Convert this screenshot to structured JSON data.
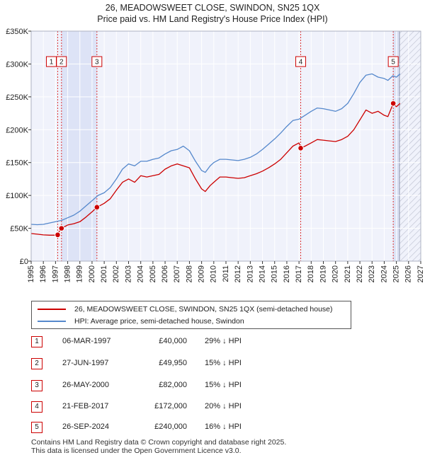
{
  "chart_data": {
    "type": "line",
    "title": "26, MEADOWSWEET CLOSE, SWINDON, SN25 1QX",
    "subtitle": "Price paid vs. HM Land Registry's House Price Index (HPI)",
    "xlim": [
      1995,
      2027
    ],
    "ylim": [
      0,
      350000
    ],
    "y_ticks": [
      0,
      50000,
      100000,
      150000,
      200000,
      250000,
      300000,
      350000
    ],
    "y_tick_labels": [
      "£0",
      "£50K",
      "£100K",
      "£150K",
      "£200K",
      "£250K",
      "£300K",
      "£350K"
    ],
    "x_ticks": [
      1995,
      1996,
      1997,
      1998,
      1999,
      2000,
      2001,
      2002,
      2003,
      2004,
      2005,
      2006,
      2007,
      2008,
      2009,
      2010,
      2011,
      2012,
      2013,
      2014,
      2015,
      2016,
      2017,
      2018,
      2019,
      2020,
      2021,
      2022,
      2023,
      2024,
      2025,
      2026,
      2027
    ],
    "x_tick_labels": [
      "1995",
      "1996",
      "1997",
      "1998",
      "1999",
      "2000",
      "2001",
      "2002",
      "2003",
      "2004",
      "2005",
      "2006",
      "2007",
      "2008",
      "2009",
      "2010",
      "2011",
      "2012",
      "2013",
      "2014",
      "2015",
      "2016",
      "2017",
      "2018",
      "2019",
      "2020",
      "2021",
      "2022",
      "2023",
      "2024",
      "2025",
      "2026",
      "2027"
    ],
    "shaded_ranges": [
      [
        1997.48,
        2000.4
      ],
      [
        2024.73,
        2025.25
      ]
    ],
    "hatched_range": [
      2025.25,
      2027
    ],
    "series": [
      {
        "name": "26, MEADOWSWEET CLOSE, SWINDON, SN25 1QX (semi-detached house)",
        "color": "#cc0000",
        "x": [
          1995.0,
          1995.5,
          1996.0,
          1996.5,
          1997.0,
          1997.18,
          1997.18,
          1997.3,
          1997.49,
          1997.49,
          1998.0,
          1998.5,
          1999.0,
          1999.5,
          2000.0,
          2000.4,
          2000.4,
          2001.0,
          2001.5,
          2002.0,
          2002.5,
          2003.0,
          2003.5,
          2004.0,
          2004.5,
          2005.0,
          2005.5,
          2006.0,
          2006.5,
          2007.0,
          2007.5,
          2008.0,
          2008.5,
          2009.0,
          2009.3,
          2009.7,
          2010.0,
          2010.5,
          2011.0,
          2011.5,
          2012.0,
          2012.5,
          2013.0,
          2013.5,
          2014.0,
          2014.5,
          2015.0,
          2015.5,
          2016.0,
          2016.5,
          2017.0,
          2017.14,
          2017.14,
          2017.5,
          2018.0,
          2018.5,
          2019.0,
          2019.5,
          2020.0,
          2020.5,
          2021.0,
          2021.5,
          2022.0,
          2022.5,
          2023.0,
          2023.5,
          2024.0,
          2024.3,
          2024.74,
          2024.74,
          2025.0,
          2025.3
        ],
        "values": [
          42000,
          41000,
          40000,
          39500,
          39500,
          40000,
          40000,
          45000,
          49950,
          49950,
          55000,
          57000,
          60000,
          67000,
          75000,
          82000,
          82000,
          88000,
          95000,
          108000,
          120000,
          125000,
          120000,
          130000,
          128000,
          130000,
          132000,
          140000,
          145000,
          148000,
          145000,
          142000,
          125000,
          110000,
          106000,
          115000,
          120000,
          128000,
          128000,
          127000,
          126000,
          127000,
          130000,
          133000,
          137000,
          142000,
          148000,
          155000,
          165000,
          175000,
          180000,
          172000,
          172000,
          175000,
          180000,
          185000,
          184000,
          183000,
          182000,
          185000,
          190000,
          200000,
          215000,
          230000,
          225000,
          228000,
          222000,
          220000,
          240000,
          240000,
          235000,
          240000
        ]
      },
      {
        "name": "HPI: Average price, semi-detached house, Swindon",
        "color": "#5588cc",
        "x": [
          1995.0,
          1995.5,
          1996.0,
          1996.5,
          1997.0,
          1997.5,
          1998.0,
          1998.5,
          1999.0,
          1999.5,
          2000.0,
          2000.5,
          2001.0,
          2001.5,
          2002.0,
          2002.5,
          2003.0,
          2003.5,
          2004.0,
          2004.5,
          2005.0,
          2005.5,
          2006.0,
          2006.5,
          2007.0,
          2007.5,
          2008.0,
          2008.5,
          2009.0,
          2009.3,
          2009.7,
          2010.0,
          2010.5,
          2011.0,
          2011.5,
          2012.0,
          2012.5,
          2013.0,
          2013.5,
          2014.0,
          2014.5,
          2015.0,
          2015.5,
          2016.0,
          2016.5,
          2017.0,
          2017.5,
          2018.0,
          2018.5,
          2019.0,
          2019.5,
          2020.0,
          2020.5,
          2021.0,
          2021.5,
          2022.0,
          2022.5,
          2023.0,
          2023.5,
          2024.0,
          2024.3,
          2024.7,
          2025.0,
          2025.3
        ],
        "values": [
          56000,
          55500,
          56000,
          58000,
          60000,
          62000,
          66000,
          70000,
          76000,
          84000,
          92000,
          100000,
          104000,
          112000,
          125000,
          140000,
          148000,
          145000,
          152000,
          152000,
          155000,
          157000,
          163000,
          168000,
          170000,
          175000,
          168000,
          152000,
          138000,
          135000,
          145000,
          150000,
          155000,
          155000,
          154000,
          153000,
          155000,
          158000,
          163000,
          170000,
          178000,
          186000,
          195000,
          205000,
          214000,
          216000,
          222000,
          228000,
          233000,
          232000,
          230000,
          228000,
          232000,
          240000,
          255000,
          272000,
          283000,
          285000,
          280000,
          278000,
          275000,
          282000,
          280000,
          285000
        ]
      }
    ],
    "sales": [
      {
        "label": "1",
        "x": 1997.18,
        "y": 40000
      },
      {
        "label": "2",
        "x": 1997.49,
        "y": 49950
      },
      {
        "label": "3",
        "x": 2000.4,
        "y": 82000
      },
      {
        "label": "4",
        "x": 2017.14,
        "y": 172000
      },
      {
        "label": "5",
        "x": 2024.74,
        "y": 240000
      }
    ]
  },
  "legend": {
    "property_label": "26, MEADOWSWEET CLOSE, SWINDON, SN25 1QX (semi-detached house)",
    "hpi_label": "HPI: Average price, semi-detached house, Swindon",
    "property_color": "#cc0000",
    "hpi_color": "#5588cc"
  },
  "transactions": [
    {
      "num": "1",
      "date": "06-MAR-1997",
      "price": "£40,000",
      "hpi": "29% ↓ HPI"
    },
    {
      "num": "2",
      "date": "27-JUN-1997",
      "price": "£49,950",
      "hpi": "15% ↓ HPI"
    },
    {
      "num": "3",
      "date": "26-MAY-2000",
      "price": "£82,000",
      "hpi": "15% ↓ HPI"
    },
    {
      "num": "4",
      "date": "21-FEB-2017",
      "price": "£172,000",
      "hpi": "20% ↓ HPI"
    },
    {
      "num": "5",
      "date": "26-SEP-2024",
      "price": "£240,000",
      "hpi": "16% ↓ HPI"
    }
  ],
  "footer": {
    "line1": "Contains HM Land Registry data © Crown copyright and database right 2025.",
    "line2": "This data is licensed under the Open Government Licence v3.0."
  },
  "colors": {
    "plot_background": "#f0f2fb",
    "shade": "#dde3f6",
    "grid": "#ffffff",
    "marker_border": "#cc0000"
  }
}
